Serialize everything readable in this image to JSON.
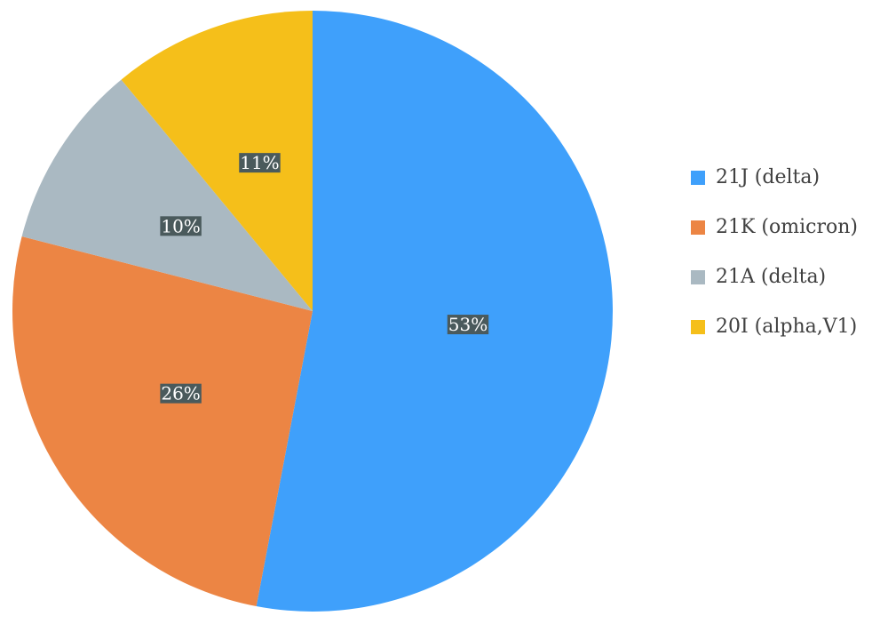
{
  "chart_data": {
    "type": "pie",
    "categories": [
      "21J (delta)",
      "21K (omicron)",
      "21A (delta)",
      "20I (alpha,V1)"
    ],
    "values": [
      53,
      26,
      10,
      11
    ],
    "value_labels": [
      "53%",
      "26%",
      "10%",
      "11%"
    ],
    "colors": [
      "#3fa0fb",
      "#ec8544",
      "#aab9c2",
      "#f5bf1a"
    ],
    "legend": "right"
  }
}
